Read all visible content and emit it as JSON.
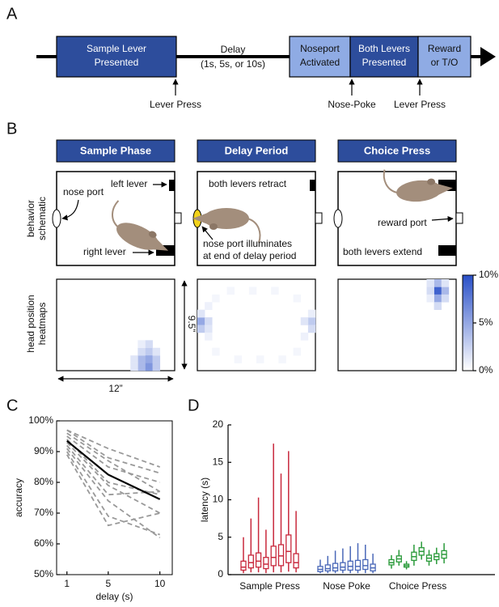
{
  "panel_labels": [
    "A",
    "B",
    "C",
    "D"
  ],
  "timeline": {
    "stages": [
      [
        "Sample Lever",
        "Presented"
      ],
      [
        "Noseport",
        "Activated"
      ],
      [
        "Both Levers",
        "Presented"
      ],
      [
        "Reward",
        "or T/O"
      ]
    ],
    "delay": "Delay",
    "delay_options": "(1s, 5s, or 10s)",
    "events": [
      "Lever Press",
      "Nose-Poke",
      "Lever Press"
    ]
  },
  "task": {
    "phases": [
      "Sample Phase",
      "Delay Period",
      "Choice Press"
    ],
    "row_labels": [
      [
        "behavior",
        "schematic"
      ],
      [
        "head position",
        "heatmaps"
      ]
    ],
    "annotations": {
      "left_lever": "left lever",
      "nose_port": "nose port",
      "right_lever": "right lever",
      "levers_retract": "both levers retract",
      "illuminates": [
        "nose port illuminates",
        "at end of delay period"
      ],
      "reward_port": "reward port",
      "levers_extend": "both levers extend"
    },
    "arena_height": "9.5”",
    "arena_width": "12”"
  },
  "chart_data": [
    {
      "type": "heatmap",
      "color": "#2a50c8",
      "zlim": [
        0,
        10
      ],
      "zticks": [
        {
          "value": 0,
          "label": "0%"
        },
        {
          "value": 5,
          "label": "5%"
        },
        {
          "value": 10,
          "label": "10%"
        }
      ],
      "maps": [
        {
          "cells": [
            [
              12,
              9,
              3
            ],
            [
              12,
              10,
              5
            ],
            [
              11,
              10,
              4
            ],
            [
              12,
              11,
              6
            ],
            [
              13,
              10,
              3
            ],
            [
              11,
              11,
              4
            ],
            [
              13,
              11,
              3
            ],
            [
              12,
              8,
              2
            ],
            [
              11,
              9,
              2
            ],
            [
              13,
              9,
              1.5
            ],
            [
              10,
              10,
              1.5
            ],
            [
              11,
              8,
              1
            ],
            [
              10,
              11,
              1.5
            ]
          ]
        },
        {
          "cells": [
            [
              0,
              5,
              5
            ],
            [
              0,
              6,
              3
            ],
            [
              1,
              5,
              2
            ],
            [
              1,
              6,
              1.5
            ],
            [
              0,
              4,
              1.5
            ],
            [
              15,
              5,
              3
            ],
            [
              15,
              6,
              2
            ],
            [
              14,
              5,
              1.5
            ],
            [
              15,
              4,
              1
            ],
            [
              2,
              2,
              0.5
            ],
            [
              4,
              1,
              0.5
            ],
            [
              7,
              1,
              0.5
            ],
            [
              10,
              1,
              0.5
            ],
            [
              13,
              2,
              0.5
            ],
            [
              2,
              9,
              0.5
            ],
            [
              5,
              10,
              0.5
            ],
            [
              8,
              10,
              0.5
            ],
            [
              11,
              10,
              0.5
            ],
            [
              13,
              9,
              0.5
            ],
            [
              1,
              3,
              0.8
            ],
            [
              14,
              7,
              0.8
            ],
            [
              1,
              7,
              0.8
            ]
          ]
        },
        {
          "cells": [
            [
              13,
              1,
              9
            ],
            [
              13,
              0,
              4
            ],
            [
              14,
              1,
              4
            ],
            [
              13,
              2,
              5
            ],
            [
              12,
              1,
              2
            ],
            [
              14,
              2,
              2
            ],
            [
              13,
              3,
              2
            ],
            [
              12,
              0,
              1.5
            ],
            [
              14,
              0,
              1.5
            ],
            [
              12,
              2,
              1
            ]
          ]
        }
      ]
    },
    {
      "type": "line",
      "xlabel": "delay (s)",
      "ylabel": "accuracy",
      "x": [
        1,
        5,
        10
      ],
      "xlim": [
        0,
        11.2
      ],
      "xticks": [
        1,
        5,
        10
      ],
      "ylim": [
        50,
        100
      ],
      "yticks": [
        {
          "value": 50,
          "label": "50%"
        },
        {
          "value": 60,
          "label": "60%"
        },
        {
          "value": 70,
          "label": "70%"
        },
        {
          "value": 80,
          "label": "80%"
        },
        {
          "value": 90,
          "label": "90%"
        },
        {
          "value": 100,
          "label": "100%"
        }
      ],
      "series": [
        {
          "color": "#999999",
          "dash": true,
          "values": [
            97,
            91,
            85
          ]
        },
        {
          "color": "#999999",
          "dash": true,
          "values": [
            97,
            88,
            83
          ]
        },
        {
          "color": "#999999",
          "dash": true,
          "values": [
            96,
            87,
            77
          ]
        },
        {
          "color": "#999999",
          "dash": true,
          "values": [
            95,
            85,
            80
          ]
        },
        {
          "color": "#999999",
          "dash": true,
          "values": [
            94,
            80,
            76
          ]
        },
        {
          "color": "#999999",
          "dash": true,
          "values": [
            93,
            79,
            70
          ]
        },
        {
          "color": "#999999",
          "dash": true,
          "values": [
            92,
            76,
            77
          ]
        },
        {
          "color": "#999999",
          "dash": true,
          "values": [
            91,
            74,
            62
          ]
        },
        {
          "color": "#999999",
          "dash": true,
          "values": [
            90,
            69,
            63
          ]
        },
        {
          "color": "#999999",
          "dash": true,
          "values": [
            89,
            66,
            70
          ]
        },
        {
          "color": "#000000",
          "dash": false,
          "values": [
            93.5,
            82.5,
            74.5
          ]
        }
      ]
    },
    {
      "type": "box",
      "ylabel": "latency (s)",
      "ylim": [
        0,
        20
      ],
      "yticks": [
        0,
        5,
        10,
        15,
        20
      ],
      "categories": [
        "Sample Press",
        "Nose Poke",
        "Choice Press"
      ],
      "colors": [
        "#c8283c",
        "#4a68b8",
        "#2a9a3a"
      ],
      "boxes": [
        [
          [
            0.2,
            0.6,
            1.0,
            1.8,
            5.0
          ],
          [
            0.3,
            0.9,
            1.6,
            2.6,
            7.5
          ],
          [
            0.3,
            1.0,
            1.8,
            2.9,
            10.3
          ],
          [
            0.2,
            0.8,
            1.4,
            2.3,
            6.0
          ],
          [
            0.3,
            1.2,
            2.3,
            3.8,
            17.5
          ],
          [
            0.3,
            1.2,
            2.5,
            4.0,
            13.5
          ],
          [
            0.4,
            1.6,
            3.1,
            5.3,
            16.5
          ],
          [
            0.3,
            0.9,
            1.6,
            2.8,
            8.5
          ]
        ],
        [
          [
            0.2,
            0.4,
            0.7,
            1.1,
            2.0
          ],
          [
            0.2,
            0.5,
            0.8,
            1.3,
            2.5
          ],
          [
            0.2,
            0.5,
            0.9,
            1.5,
            3.2
          ],
          [
            0.2,
            0.6,
            1.0,
            1.6,
            3.5
          ],
          [
            0.2,
            0.6,
            1.1,
            1.8,
            3.8
          ],
          [
            0.2,
            0.6,
            1.1,
            1.9,
            4.2
          ],
          [
            0.2,
            0.7,
            1.2,
            2.0,
            4.0
          ],
          [
            0.2,
            0.5,
            0.9,
            1.4,
            2.8
          ]
        ],
        [
          [
            0.8,
            1.3,
            1.6,
            2.0,
            2.6
          ],
          [
            1.2,
            1.7,
            2.1,
            2.5,
            3.3
          ],
          [
            0.7,
            1.0,
            1.2,
            1.4,
            1.8
          ],
          [
            1.2,
            1.9,
            2.4,
            3.0,
            4.0
          ],
          [
            2.0,
            2.6,
            3.1,
            3.6,
            4.4
          ],
          [
            1.2,
            1.8,
            2.2,
            2.6,
            3.3
          ],
          [
            1.4,
            2.0,
            2.4,
            2.8,
            3.6
          ],
          [
            1.5,
            2.2,
            2.7,
            3.2,
            4.2
          ]
        ]
      ]
    }
  ]
}
